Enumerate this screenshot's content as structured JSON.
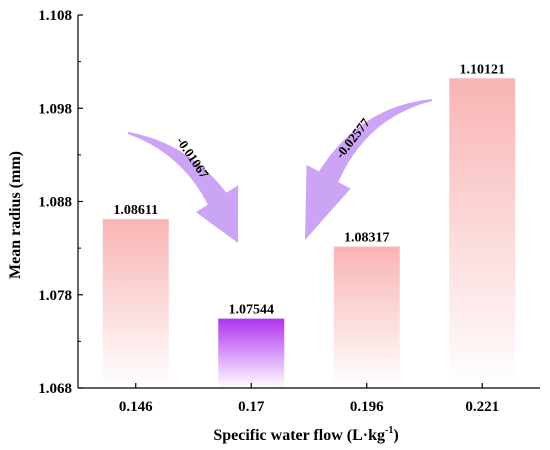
{
  "chart_data": {
    "type": "bar",
    "categories": [
      "0.146",
      "0.17",
      "0.196",
      "0.221"
    ],
    "values": [
      1.08611,
      1.07544,
      1.08317,
      1.10121
    ],
    "value_labels": [
      "1.08611",
      "1.07544",
      "1.08317",
      "1.10121"
    ],
    "ylim": [
      1.068,
      1.108
    ],
    "yticks": [
      1.068,
      1.078,
      1.088,
      1.098,
      1.108
    ],
    "ytick_labels": [
      "1.068",
      "1.078",
      "1.088",
      "1.098",
      "1.108"
    ],
    "ylabel": "Mean radius (mm)",
    "xlabel": {
      "main": "Specific water flow (L·kg",
      "sup": "-1",
      "close": ")"
    },
    "grid": false,
    "bar_colors": [
      "#f9b4b4",
      "#b033f2",
      "#f9b4b4",
      "#f9b4b4"
    ],
    "annotations": [
      {
        "text": "-0.01067",
        "from_category": "0.146",
        "to_category": "0.17"
      },
      {
        "text": "-0.02577",
        "from_category": "0.221",
        "to_category": "0.17"
      }
    ],
    "arrow_color": "#c79af5"
  }
}
